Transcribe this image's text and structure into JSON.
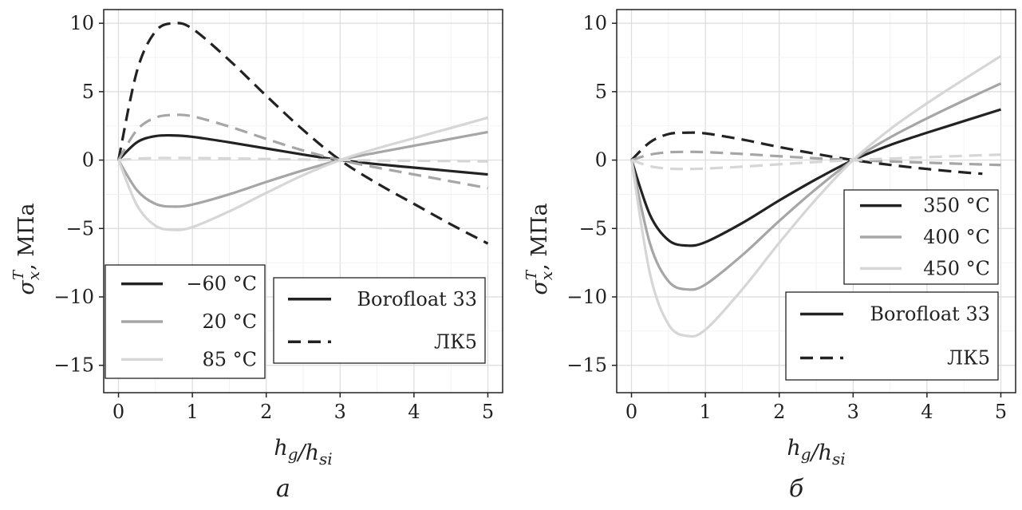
{
  "chart_data": [
    {
      "type": "line",
      "panel_label": "а",
      "xlabel": "h_g/h_si",
      "ylabel": "σ_x^T, МПа",
      "xlim": [
        -0.2,
        5.2
      ],
      "ylim": [
        -17,
        11
      ],
      "xticks": [
        "0",
        "1",
        "2",
        "3",
        "4",
        "5"
      ],
      "yticks": [
        "10",
        "5",
        "0",
        "−5",
        "−10",
        "−15"
      ],
      "grid": true,
      "temperature_legend": {
        "position": "bottom-left",
        "entries": [
          {
            "label": "−60 °C",
            "color": "#222222"
          },
          {
            "label": "20 °C",
            "color": "#a6a6a6"
          },
          {
            "label": "85 °C",
            "color": "#d6d6d6"
          }
        ]
      },
      "material_legend": {
        "position": "bottom-right",
        "entries": [
          {
            "label": "Borofloat 33",
            "style": "solid"
          },
          {
            "label": "ЛК5",
            "style": "dashed"
          }
        ]
      },
      "series": [
        {
          "temperature": "−60 °C",
          "material": "Borofloat 33",
          "color": "#222222",
          "dash": "solid",
          "x": [
            0,
            0.25,
            0.5,
            0.75,
            1,
            1.5,
            2,
            2.5,
            3,
            3.5,
            4,
            4.5,
            5
          ],
          "values": [
            0,
            1.3,
            1.75,
            1.8,
            1.7,
            1.3,
            0.85,
            0.4,
            0,
            -0.3,
            -0.55,
            -0.8,
            -1.05
          ]
        },
        {
          "temperature": "20 °C",
          "material": "Borofloat 33",
          "color": "#a6a6a6",
          "dash": "solid",
          "x": [
            0,
            0.25,
            0.5,
            0.75,
            1,
            1.5,
            2,
            2.5,
            3,
            3.5,
            4,
            4.5,
            5
          ],
          "values": [
            0,
            -2.2,
            -3.2,
            -3.4,
            -3.25,
            -2.5,
            -1.6,
            -0.75,
            0,
            0.55,
            1.05,
            1.55,
            2.05
          ]
        },
        {
          "temperature": "85 °C",
          "material": "Borofloat 33",
          "color": "#d6d6d6",
          "dash": "solid",
          "x": [
            0,
            0.25,
            0.5,
            0.75,
            1,
            1.5,
            2,
            2.5,
            3,
            3.5,
            4,
            4.5,
            5
          ],
          "values": [
            0,
            -3.3,
            -4.8,
            -5.1,
            -4.9,
            -3.75,
            -2.4,
            -1.1,
            0,
            0.85,
            1.6,
            2.35,
            3.1
          ]
        },
        {
          "temperature": "−60 °C",
          "material": "ЛК5",
          "color": "#222222",
          "dash": "dashed",
          "x": [
            0,
            0.25,
            0.5,
            0.75,
            1,
            1.5,
            2,
            2.5,
            3,
            3.5,
            4,
            4.5,
            5
          ],
          "values": [
            0,
            6.5,
            9.4,
            10,
            9.6,
            7.3,
            4.7,
            2.2,
            0,
            -1.7,
            -3.2,
            -4.7,
            -6.1
          ]
        },
        {
          "temperature": "20 °C",
          "material": "ЛК5",
          "color": "#a6a6a6",
          "dash": "dashed",
          "x": [
            0,
            0.25,
            0.5,
            0.75,
            1,
            1.5,
            2,
            2.5,
            3,
            3.5,
            4,
            4.5,
            5
          ],
          "values": [
            0,
            2.2,
            3.1,
            3.3,
            3.2,
            2.45,
            1.55,
            0.7,
            0,
            -0.55,
            -1.05,
            -1.55,
            -2.05
          ]
        },
        {
          "temperature": "85 °C",
          "material": "ЛК5",
          "color": "#d6d6d6",
          "dash": "dashed",
          "x": [
            0,
            0.25,
            0.5,
            0.75,
            1,
            1.5,
            2,
            2.5,
            3,
            3.5,
            4,
            4.5,
            5
          ],
          "values": [
            0,
            0.1,
            0.15,
            0.15,
            0.15,
            0.12,
            0.08,
            0.04,
            0,
            -0.03,
            -0.05,
            -0.07,
            -0.1
          ]
        }
      ]
    },
    {
      "type": "line",
      "panel_label": "б",
      "xlabel": "h_g/h_si",
      "ylabel": "σ_x^T, МПа",
      "xlim": [
        -0.2,
        5.2
      ],
      "ylim": [
        -17,
        11
      ],
      "xticks": [
        "0",
        "1",
        "2",
        "3",
        "4",
        "5"
      ],
      "yticks": [
        "10",
        "5",
        "0",
        "−5",
        "−10",
        "−15"
      ],
      "grid": true,
      "temperature_legend": {
        "position": "right",
        "entries": [
          {
            "label": "350 °C",
            "color": "#222222"
          },
          {
            "label": "400 °C",
            "color": "#a6a6a6"
          },
          {
            "label": "450 °C",
            "color": "#d6d6d6"
          }
        ]
      },
      "material_legend": {
        "position": "bottom-right",
        "entries": [
          {
            "label": "Borofloat 33",
            "style": "solid"
          },
          {
            "label": "ЛК5",
            "style": "dashed"
          }
        ]
      },
      "series": [
        {
          "temperature": "350 °C",
          "material": "Borofloat 33",
          "color": "#222222",
          "dash": "solid",
          "x": [
            0,
            0.25,
            0.5,
            0.75,
            1,
            1.5,
            2,
            2.5,
            3,
            3.5,
            4,
            4.5,
            5
          ],
          "values": [
            0,
            -4.0,
            -5.85,
            -6.25,
            -6.0,
            -4.6,
            -2.95,
            -1.4,
            0,
            1.1,
            2.0,
            2.85,
            3.7
          ]
        },
        {
          "temperature": "400 °C",
          "material": "Borofloat 33",
          "color": "#a6a6a6",
          "dash": "solid",
          "x": [
            0,
            0.25,
            0.5,
            0.75,
            1,
            1.5,
            2,
            2.5,
            3,
            3.5,
            4,
            4.5,
            5
          ],
          "values": [
            0,
            -6.1,
            -8.85,
            -9.45,
            -9.1,
            -6.95,
            -4.45,
            -2.1,
            0,
            1.65,
            3.05,
            4.35,
            5.6
          ]
        },
        {
          "temperature": "450 °C",
          "material": "Borofloat 33",
          "color": "#d6d6d6",
          "dash": "solid",
          "x": [
            0,
            0.25,
            0.5,
            0.75,
            1,
            1.5,
            2,
            2.5,
            3,
            3.5,
            4,
            4.5,
            5
          ],
          "values": [
            0,
            -8.3,
            -12.0,
            -12.85,
            -12.4,
            -9.45,
            -6.05,
            -2.85,
            0,
            2.25,
            4.15,
            5.9,
            7.6
          ]
        },
        {
          "temperature": "350 °C",
          "material": "ЛК5",
          "color": "#222222",
          "dash": "dashed",
          "x": [
            0,
            0.25,
            0.5,
            0.75,
            1,
            1.5,
            2,
            2.5,
            3,
            3.5,
            4,
            4.5,
            4.75
          ],
          "values": [
            0,
            1.3,
            1.9,
            2.0,
            1.95,
            1.5,
            0.95,
            0.45,
            0,
            -0.35,
            -0.65,
            -0.9,
            -1.0
          ]
        },
        {
          "temperature": "400 °C",
          "material": "ЛК5",
          "color": "#a6a6a6",
          "dash": "dashed",
          "x": [
            0,
            0.25,
            0.5,
            0.75,
            1,
            1.5,
            2,
            2.5,
            3,
            3.5,
            4,
            4.5,
            5
          ],
          "values": [
            0,
            0.4,
            0.57,
            0.6,
            0.58,
            0.45,
            0.28,
            0.13,
            0,
            -0.1,
            -0.19,
            -0.28,
            -0.36
          ]
        },
        {
          "temperature": "450 °C",
          "material": "ЛК5",
          "color": "#d6d6d6",
          "dash": "dashed",
          "x": [
            0,
            0.25,
            0.5,
            0.75,
            1,
            1.5,
            2,
            2.5,
            3,
            3.5,
            4,
            4.5,
            5
          ],
          "values": [
            0,
            -0.45,
            -0.62,
            -0.65,
            -0.62,
            -0.48,
            -0.31,
            -0.14,
            0,
            0.11,
            0.21,
            0.31,
            0.4
          ]
        }
      ]
    }
  ]
}
